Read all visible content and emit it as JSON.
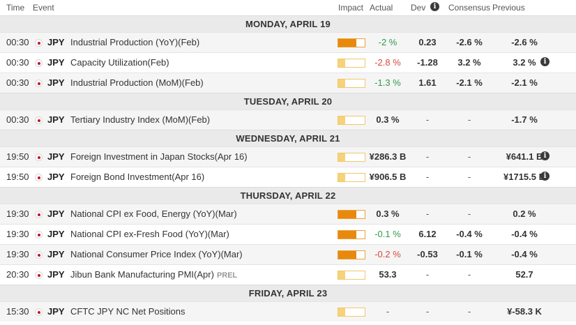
{
  "header": {
    "time": "Time",
    "event": "Event",
    "impact": "Impact",
    "actual": "Actual",
    "dev": "Dev",
    "dev_icon": "info-icon",
    "consensus": "Consensus",
    "previous": "Previous"
  },
  "colors": {
    "positive": "#2e9b4a",
    "negative": "#d9483b",
    "impact_high": "#e8890e",
    "impact_low": "#f6d27a"
  },
  "days": [
    {
      "label": "MONDAY, APRIL 19",
      "events": [
        {
          "time": "00:30",
          "flag": "japan-flag",
          "currency": "JPY",
          "event": "Industrial Production (YoY)(Feb)",
          "impact": "medium",
          "actual": "-2 %",
          "actual_tone": "pos",
          "dev": "0.23",
          "consensus": "-2.6 %",
          "previous": "-2.6 %",
          "prev_info": false
        },
        {
          "time": "00:30",
          "flag": "japan-flag",
          "currency": "JPY",
          "event": "Capacity Utilization(Feb)",
          "impact": "low",
          "actual": "-2.8 %",
          "actual_tone": "neg",
          "dev": "-1.28",
          "consensus": "3.2 %",
          "previous": "3.2 %",
          "prev_info": true
        },
        {
          "time": "00:30",
          "flag": "japan-flag",
          "currency": "JPY",
          "event": "Industrial Production (MoM)(Feb)",
          "impact": "low",
          "actual": "-1.3 %",
          "actual_tone": "pos",
          "dev": "1.61",
          "consensus": "-2.1 %",
          "previous": "-2.1 %",
          "prev_info": false
        }
      ]
    },
    {
      "label": "TUESDAY, APRIL 20",
      "events": [
        {
          "time": "00:30",
          "flag": "japan-flag",
          "currency": "JPY",
          "event": "Tertiary Industry Index (MoM)(Feb)",
          "impact": "low",
          "actual": "0.3 %",
          "actual_tone": "plain",
          "dev": "-",
          "consensus": "-",
          "previous": "-1.7 %",
          "prev_info": false
        }
      ]
    },
    {
      "label": "WEDNESDAY, APRIL 21",
      "events": [
        {
          "time": "19:50",
          "flag": "japan-flag",
          "currency": "JPY",
          "event": "Foreign Investment in Japan Stocks(Apr 16)",
          "impact": "low",
          "actual": "¥286.3 B",
          "actual_tone": "plain",
          "dev": "-",
          "consensus": "-",
          "previous": "¥641.1 B",
          "prev_info": true
        },
        {
          "time": "19:50",
          "flag": "japan-flag",
          "currency": "JPY",
          "event": "Foreign Bond Investment(Apr 16)",
          "impact": "low",
          "actual": "¥906.5 B",
          "actual_tone": "plain",
          "dev": "-",
          "consensus": "-",
          "previous": "¥1715.5 B",
          "prev_info": true
        }
      ]
    },
    {
      "label": "THURSDAY, APRIL 22",
      "events": [
        {
          "time": "19:30",
          "flag": "japan-flag",
          "currency": "JPY",
          "event": "National CPI ex Food, Energy (YoY)(Mar)",
          "impact": "medium",
          "actual": "0.3 %",
          "actual_tone": "plain",
          "dev": "-",
          "consensus": "-",
          "previous": "0.2 %",
          "prev_info": false
        },
        {
          "time": "19:30",
          "flag": "japan-flag",
          "currency": "JPY",
          "event": "National CPI ex-Fresh Food (YoY)(Mar)",
          "impact": "medium",
          "actual": "-0.1 %",
          "actual_tone": "pos",
          "dev": "6.12",
          "consensus": "-0.4 %",
          "previous": "-0.4 %",
          "prev_info": false
        },
        {
          "time": "19:30",
          "flag": "japan-flag",
          "currency": "JPY",
          "event": "National Consumer Price Index (YoY)(Mar)",
          "impact": "medium",
          "actual": "-0.2 %",
          "actual_tone": "neg",
          "dev": "-0.53",
          "consensus": "-0.1 %",
          "previous": "-0.4 %",
          "prev_info": false
        },
        {
          "time": "20:30",
          "flag": "japan-flag",
          "currency": "JPY",
          "event": "Jibun Bank Manufacturing PMI(Apr)",
          "prel": "PREL",
          "impact": "low",
          "actual": "53.3",
          "actual_tone": "plain",
          "dev": "-",
          "consensus": "-",
          "previous": "52.7",
          "prev_info": false
        }
      ]
    },
    {
      "label": "FRIDAY, APRIL 23",
      "events": [
        {
          "time": "15:30",
          "flag": "japan-flag",
          "currency": "JPY",
          "event": "CFTC JPY NC Net Positions",
          "impact": "low",
          "actual": "-",
          "actual_tone": "dash",
          "dev": "-",
          "consensus": "-",
          "previous": "¥-58.3 K",
          "prev_info": false
        }
      ]
    }
  ]
}
